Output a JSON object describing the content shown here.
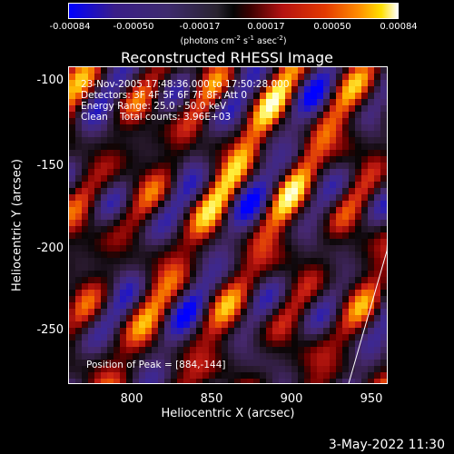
{
  "colorbar": {
    "ticks": [
      "-0.00084",
      "-0.00050",
      "-0.00017",
      "0.00017",
      "0.00050",
      "0.00084"
    ],
    "unit_prefix": "(photons cm",
    "unit_exp1": "-2",
    "unit_mid1": " s",
    "unit_exp2": "-1",
    "unit_mid2": " asec",
    "unit_exp3": "-2",
    "unit_suffix": ")"
  },
  "chart_data": {
    "type": "heatmap",
    "title": "Reconstructed RHESSI Image",
    "xlabel": "Heliocentric X (arcsec)",
    "ylabel": "Heliocentric Y (arcsec)",
    "xlim": [
      764,
      954
    ],
    "ylim": [
      -284,
      -90
    ],
    "x_ticks": [
      "800",
      "850",
      "900",
      "950"
    ],
    "y_ticks": [
      "-100",
      "-150",
      "-200",
      "-250"
    ],
    "value_range": [
      -0.00084,
      0.00084
    ],
    "peak": {
      "x": 884,
      "y": -144
    },
    "annotations": {
      "time": "23-Nov-2005 17:48:36.000 to 17:50:28.000",
      "detectors": "Detectors: 3F 4F 5F 6F 7F 8F, Att 0",
      "energy": "Energy Range: 25.0 - 50.0 keV",
      "clean": "Clean    Total counts: 3.96E+03",
      "peak_text": "Position of Peak = [884,-144]"
    },
    "limb_line": {
      "x": [
        930,
        953
      ],
      "y": [
        -284,
        -202
      ]
    }
  },
  "footer": {
    "date": "3-May-2022 11:30"
  }
}
